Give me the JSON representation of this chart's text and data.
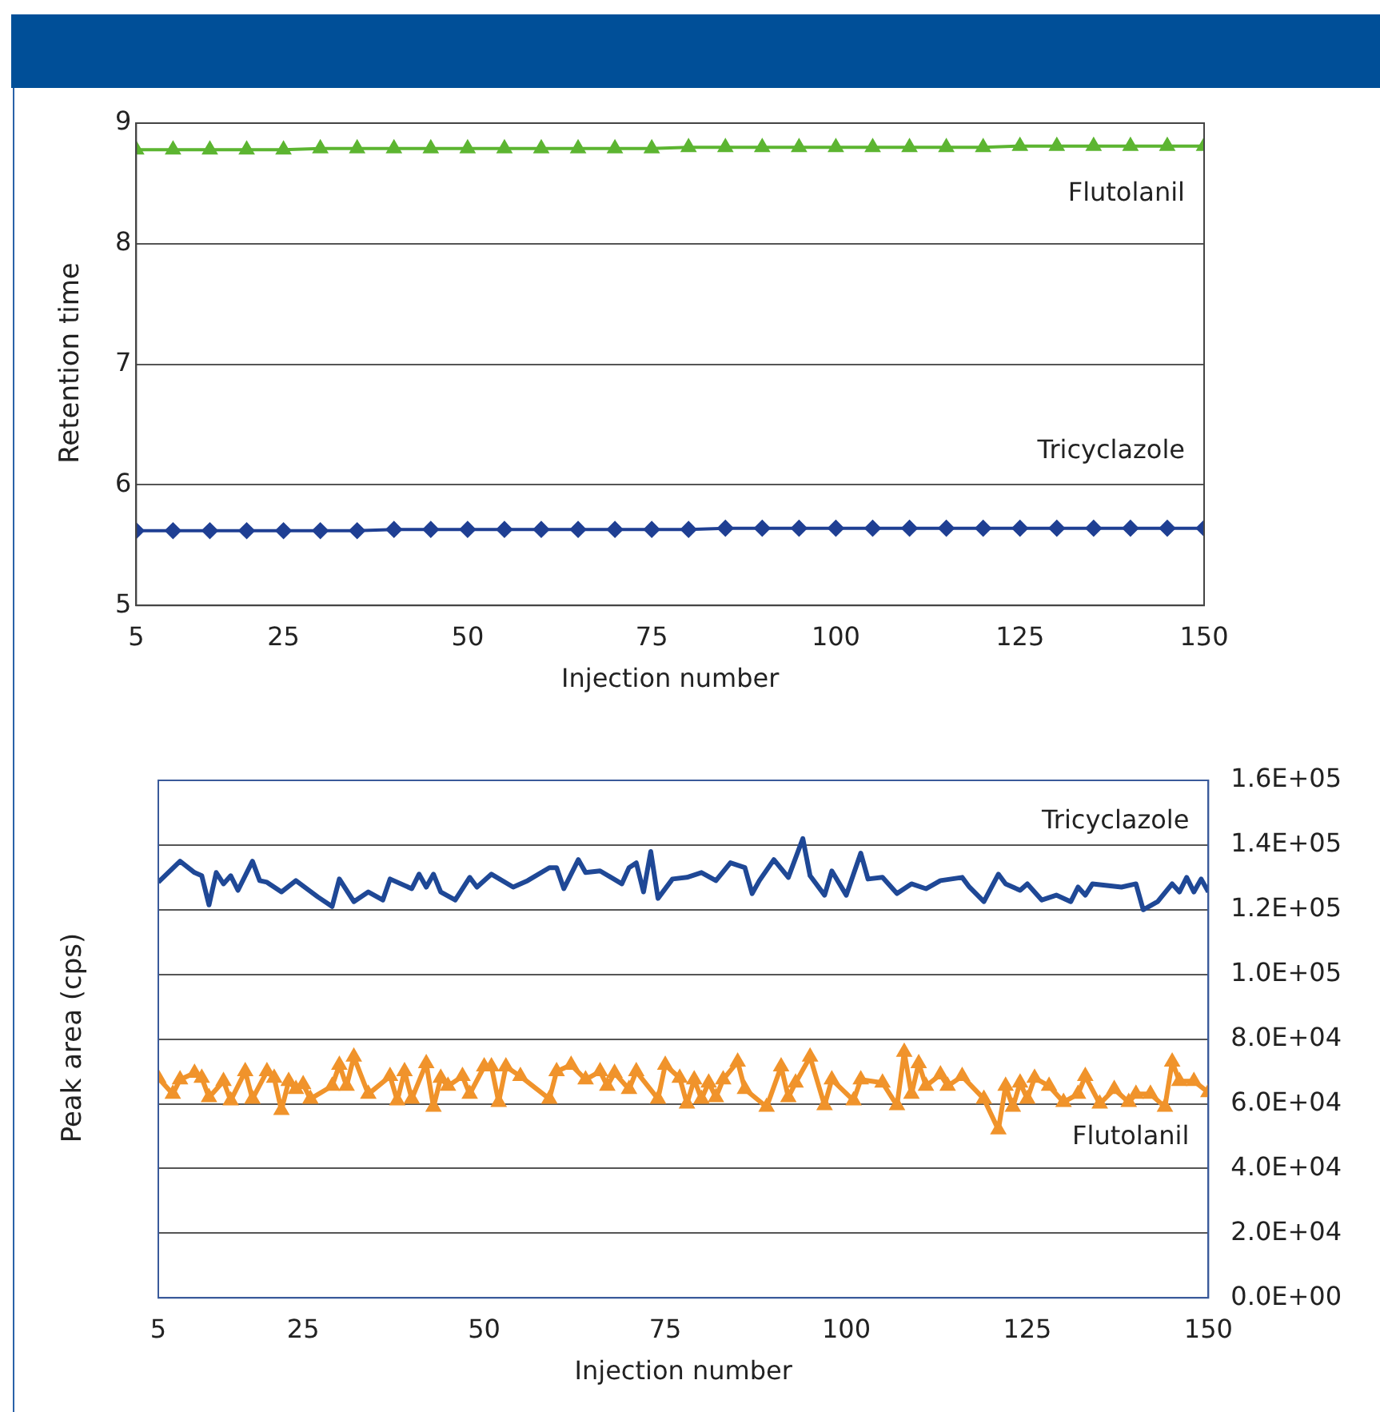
{
  "chart_data": [
    {
      "type": "line",
      "xlabel": "Injection number",
      "ylabel": "Retention time",
      "xlim": [
        5,
        150
      ],
      "xticks": [
        5,
        25,
        50,
        75,
        100,
        125,
        150
      ],
      "ylim": [
        5,
        9
      ],
      "yticks": [
        5,
        6,
        7,
        8,
        9
      ],
      "grid": "y",
      "legend": false,
      "x": [
        5,
        10,
        15,
        20,
        25,
        30,
        35,
        40,
        45,
        50,
        55,
        60,
        65,
        70,
        75,
        80,
        85,
        90,
        95,
        100,
        105,
        110,
        115,
        120,
        125,
        130,
        135,
        140,
        145,
        150
      ],
      "series": [
        {
          "name": "Flutolanil",
          "color": "#5cb531",
          "marker": "triangle",
          "values": [
            8.78,
            8.78,
            8.78,
            8.78,
            8.78,
            8.79,
            8.79,
            8.79,
            8.79,
            8.79,
            8.79,
            8.79,
            8.79,
            8.79,
            8.79,
            8.8,
            8.8,
            8.8,
            8.8,
            8.8,
            8.8,
            8.8,
            8.8,
            8.8,
            8.81,
            8.81,
            8.81,
            8.81,
            8.81,
            8.81
          ]
        },
        {
          "name": "Tricyclazole",
          "color": "#1f3f93",
          "marker": "diamond",
          "values": [
            5.62,
            5.62,
            5.62,
            5.62,
            5.62,
            5.62,
            5.62,
            5.63,
            5.63,
            5.63,
            5.63,
            5.63,
            5.63,
            5.63,
            5.63,
            5.63,
            5.64,
            5.64,
            5.64,
            5.64,
            5.64,
            5.64,
            5.64,
            5.64,
            5.64,
            5.64,
            5.64,
            5.64,
            5.64,
            5.64
          ]
        }
      ]
    },
    {
      "type": "line",
      "xlabel": "Injection number",
      "ylabel": "Peak area (cps)",
      "xlim": [
        5,
        150
      ],
      "xticks": [
        5,
        25,
        50,
        75,
        100,
        125,
        150
      ],
      "y2lim": [
        0,
        160000
      ],
      "y2ticks": [
        {
          "value": 0,
          "label": "0.0E+00"
        },
        {
          "value": 20000,
          "label": "2.0E+04"
        },
        {
          "value": 40000,
          "label": "4.0E+04"
        },
        {
          "value": 60000,
          "label": "6.0E+04"
        },
        {
          "value": 80000,
          "label": "8.0E+04"
        },
        {
          "value": 100000,
          "label": "1.0E+05"
        },
        {
          "value": 120000,
          "label": "1.2E+05"
        },
        {
          "value": 140000,
          "label": "1.4E+05"
        },
        {
          "value": 160000,
          "label": "1.6E+05"
        }
      ],
      "grid": "y",
      "legend": false,
      "series": [
        {
          "name": "Tricyclazole",
          "color": "#1f4896",
          "marker": "none",
          "axis": "y2",
          "x": [
            5,
            8,
            10,
            11,
            12,
            13,
            14,
            15,
            16,
            18,
            19,
            20,
            22,
            24,
            27,
            29,
            30,
            32,
            34,
            36,
            37,
            40,
            41,
            42,
            43,
            44,
            46,
            48,
            49,
            51,
            54,
            56,
            59,
            60,
            61,
            63,
            64,
            66,
            69,
            70,
            71,
            72,
            73,
            74,
            76,
            78,
            80,
            82,
            84,
            86,
            87,
            88,
            90,
            92,
            94,
            95,
            97,
            98,
            100,
            102,
            103,
            105,
            107,
            109,
            111,
            113,
            116,
            117,
            119,
            121,
            122,
            124,
            125,
            127,
            129,
            131,
            132,
            133,
            134,
            138,
            140,
            141,
            143,
            145,
            146,
            147,
            148,
            149,
            150
          ],
          "values": [
            128500,
            135000,
            131500,
            130500,
            121500,
            131500,
            128000,
            130500,
            126000,
            135000,
            129000,
            128500,
            125500,
            129000,
            124000,
            121000,
            129500,
            122500,
            125500,
            123000,
            129500,
            126500,
            131000,
            127000,
            131000,
            125500,
            123000,
            130000,
            127000,
            131000,
            127000,
            129000,
            133000,
            133000,
            126500,
            135500,
            131500,
            132000,
            128000,
            133000,
            134500,
            125500,
            138000,
            123500,
            129500,
            130000,
            131500,
            129000,
            134500,
            133000,
            125000,
            129000,
            135500,
            130000,
            142000,
            130500,
            124500,
            132000,
            124500,
            137500,
            129500,
            130000,
            125000,
            128000,
            126500,
            129000,
            130000,
            127000,
            122500,
            131000,
            128000,
            126000,
            128000,
            123000,
            124500,
            122500,
            127000,
            124500,
            128000,
            127000,
            128000,
            120000,
            122500,
            128000,
            125500,
            130000,
            125500,
            129500,
            125500
          ]
        },
        {
          "name": "Flutolanil",
          "color": "#f0932b",
          "marker": "triangle",
          "axis": "y2",
          "x": [
            5,
            7,
            8,
            10,
            11,
            12,
            14,
            15,
            17,
            18,
            20,
            21,
            22,
            23,
            24,
            25,
            26,
            29,
            30,
            31,
            32,
            34,
            37,
            38,
            39,
            40,
            42,
            43,
            44,
            45,
            47,
            48,
            50,
            51,
            52,
            53,
            55,
            59,
            60,
            62,
            64,
            66,
            67,
            68,
            70,
            71,
            74,
            75,
            77,
            78,
            79,
            80,
            81,
            82,
            83,
            85,
            86,
            89,
            91,
            92,
            93,
            95,
            97,
            98,
            101,
            102,
            105,
            107,
            108,
            109,
            110,
            111,
            113,
            114,
            116,
            119,
            121,
            122,
            123,
            124,
            125,
            126,
            128,
            130,
            132,
            133,
            135,
            137,
            139,
            140,
            142,
            144,
            145,
            146,
            148,
            150
          ],
          "values": [
            68000,
            63000,
            67500,
            69500,
            68000,
            62000,
            67000,
            61000,
            70000,
            61500,
            70000,
            68000,
            58000,
            67000,
            64500,
            66000,
            61500,
            65500,
            72000,
            65500,
            74500,
            63000,
            68500,
            61000,
            70000,
            61500,
            72500,
            59000,
            68000,
            65500,
            68500,
            63000,
            71500,
            71500,
            60500,
            71500,
            68500,
            61500,
            70000,
            72000,
            67500,
            70000,
            65500,
            69500,
            64500,
            70000,
            61500,
            72000,
            68000,
            60000,
            67500,
            61500,
            66500,
            62000,
            67500,
            73000,
            64500,
            59000,
            71500,
            62000,
            66500,
            74500,
            59500,
            67500,
            61000,
            67500,
            66500,
            59500,
            76000,
            63000,
            72500,
            65500,
            69000,
            65500,
            68500,
            61500,
            52000,
            65500,
            59000,
            66500,
            61500,
            68000,
            65500,
            60500,
            63000,
            68500,
            60000,
            64500,
            60500,
            63000,
            63000,
            59000,
            73000,
            67000,
            67000,
            63500
          ]
        }
      ]
    }
  ]
}
